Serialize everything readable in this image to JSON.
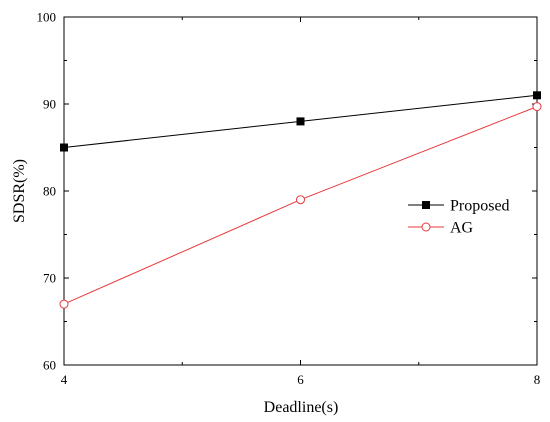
{
  "chart_data": {
    "type": "line",
    "xlabel": "Deadline(s)",
    "ylabel": "SDSR(%)",
    "xlim": [
      4,
      8
    ],
    "ylim": [
      60,
      100
    ],
    "x_ticks": [
      4,
      6,
      8
    ],
    "y_ticks": [
      60,
      70,
      80,
      90,
      100
    ],
    "grid": false,
    "legend_position": "right",
    "series": [
      {
        "name": "Proposed",
        "x": [
          4,
          6,
          8
        ],
        "values": [
          85,
          88,
          91
        ],
        "color": "#000000",
        "marker": "filled-square"
      },
      {
        "name": "AG",
        "x": [
          4,
          6,
          8
        ],
        "values": [
          67,
          79,
          89.7
        ],
        "color": "#e8383b",
        "marker": "open-circle"
      }
    ]
  }
}
